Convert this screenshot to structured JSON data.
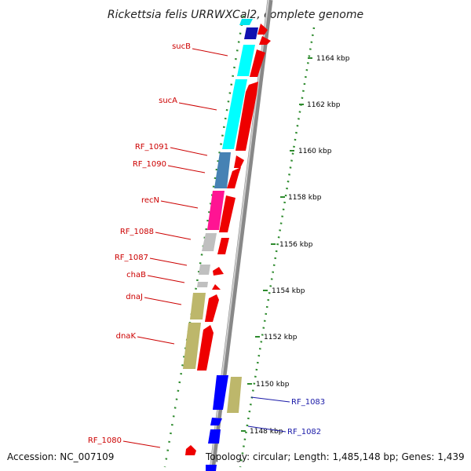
{
  "title": "Rickettsia felis URRWXCal2, complete genome",
  "footer": {
    "accession": "Accession: NC_007109",
    "topology": "Topology: circular; Length: 1,485,148 bp; Genes: 1,439"
  },
  "ticks": [
    "1164 kbp",
    "1162 kbp",
    "1160 kbp",
    "1158 kbp",
    "1156 kbp",
    "1154 kbp",
    "1152 kbp",
    "1150 kbp",
    "1148 kbp"
  ],
  "genes_left": [
    {
      "name": "sucB",
      "color": "#00ffff"
    },
    {
      "name": "sucA",
      "color": "#00ffff"
    },
    {
      "name": "RF_1091",
      "color": "#ffffff"
    },
    {
      "name": "RF_1090",
      "color": "#4682b4"
    },
    {
      "name": "recN",
      "color": "#ff1493"
    },
    {
      "name": "RF_1088",
      "color": "#c0c0c0"
    },
    {
      "name": "RF_1087",
      "color": "#c0c0c0"
    },
    {
      "name": "chaB",
      "color": "#c0c0c0"
    },
    {
      "name": "dnaJ",
      "color": "#bdb76b"
    },
    {
      "name": "dnaK",
      "color": "#bdb76b"
    },
    {
      "name": "RF_1080",
      "color": "#ff0000"
    }
  ],
  "genes_right": [
    {
      "name": "RF_1083",
      "color": "#0000ff"
    },
    {
      "name": "RF_1082",
      "color": "#0000ff"
    }
  ]
}
